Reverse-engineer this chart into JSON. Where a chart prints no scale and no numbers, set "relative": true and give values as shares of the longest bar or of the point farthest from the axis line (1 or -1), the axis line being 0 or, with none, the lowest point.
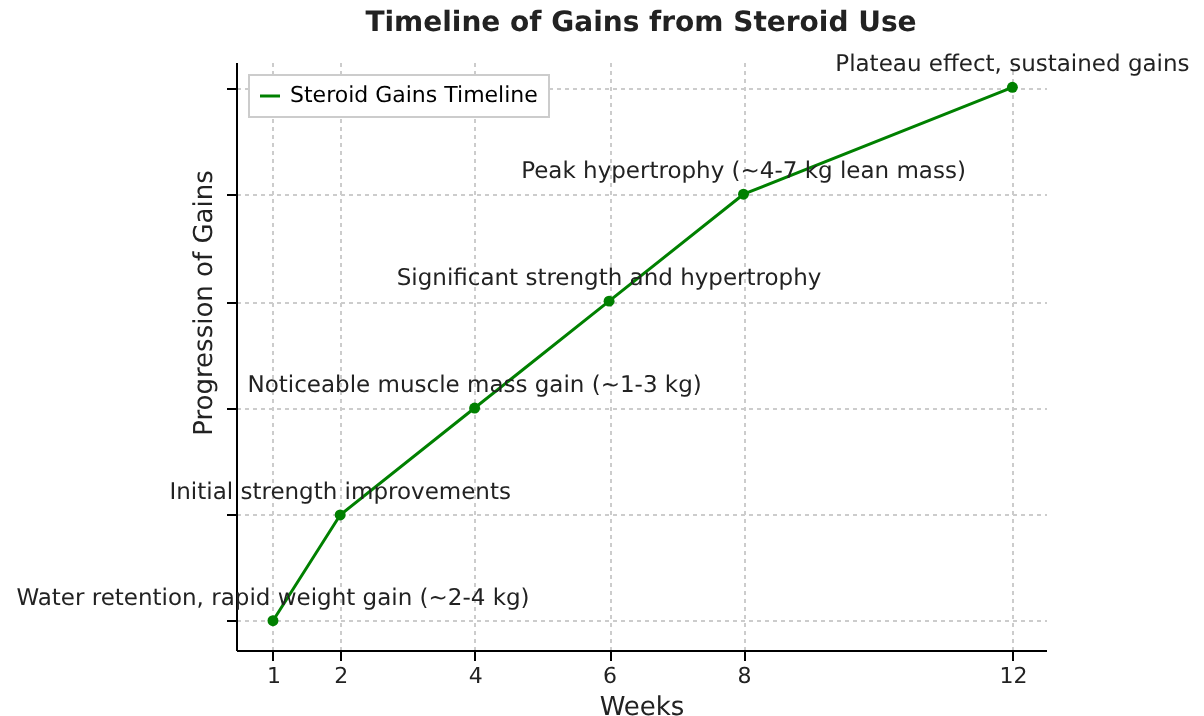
{
  "chart_data": {
    "type": "line",
    "title": "Timeline of Gains from Steroid Use",
    "xlabel": "Weeks",
    "ylabel": "Progression of Gains",
    "relative": true,
    "x": [
      1,
      2,
      4,
      6,
      8,
      12
    ],
    "xlim": [
      0.45,
      12.5
    ],
    "xticks": [
      1,
      2,
      4,
      6,
      8,
      12
    ],
    "series": [
      {
        "name": "Steroid Gains Timeline",
        "color": "#008000",
        "values": [
          0.052,
          0.24,
          0.43,
          0.62,
          0.81,
          1
        ]
      }
    ],
    "annotations": [
      {
        "text": "Water retention, rapid weight gain (~2-4 kg)",
        "x": 1,
        "y": 0.052
      },
      {
        "text": "Initial strength improvements",
        "x": 2,
        "y": 0.24
      },
      {
        "text": "Noticeable muscle mass gain (~1-3 kg)",
        "x": 4,
        "y": 0.43
      },
      {
        "text": "Significant strength and hypertrophy",
        "x": 6,
        "y": 0.62
      },
      {
        "text": "Peak hypertrophy (~4-7 kg lean mass)",
        "x": 8,
        "y": 0.81
      },
      {
        "text": "Plateau effect, sustained gains",
        "x": 12,
        "y": 1
      }
    ],
    "marker": "circle",
    "line_style": "solid",
    "grid": true,
    "legend": "top left"
  }
}
